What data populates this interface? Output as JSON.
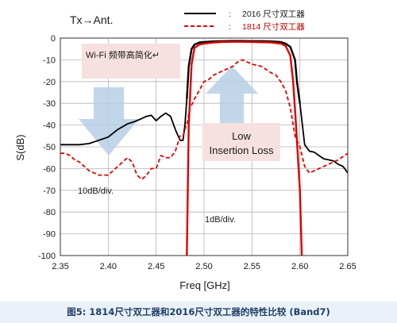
{
  "chart_data": {
    "type": "line",
    "corner_label": "Tx→Ant.",
    "xlabel": "Freq [GHz]",
    "ylabel": "S(dB)",
    "xlim": [
      2.35,
      2.65
    ],
    "ylim": [
      -100,
      0
    ],
    "x_ticks": [
      "2.35",
      "2.40",
      "2.45",
      "2.50",
      "2.55",
      "2.60",
      "2.65"
    ],
    "y_ticks": [
      "0",
      "-10",
      "-20",
      "-30",
      "-40",
      "-50",
      "-60",
      "-70",
      "-80",
      "-90",
      "-100"
    ],
    "grid": true,
    "legend_position": "top-right",
    "legend_colon": ":",
    "annotations": {
      "wifi_box": "Wi-Fi 频带高简化↵",
      "insertion_line1": "Low",
      "insertion_line2": "Insertion Loss",
      "scale_left": "10dB/div.",
      "scale_right": "1dB/div."
    },
    "series": [
      {
        "name": "2016 尺寸双工器",
        "color": "#000000",
        "style": "solid",
        "group": "attenuation",
        "x": [
          2.35,
          2.36,
          2.37,
          2.38,
          2.39,
          2.4,
          2.41,
          2.42,
          2.43,
          2.44,
          2.445,
          2.45,
          2.455,
          2.46,
          2.465,
          2.47,
          2.475,
          2.478,
          2.48,
          2.482
        ],
        "y": [
          -49,
          -49,
          -49,
          -48.5,
          -47,
          -45.5,
          -42,
          -39.5,
          -38,
          -36,
          -35.5,
          -38,
          -36,
          -34.5,
          -36,
          -42,
          -47,
          -47,
          -40,
          -28
        ]
      },
      {
        "name": "2016 尺寸双工器",
        "color": "#000000",
        "style": "solid",
        "group": "passband",
        "x": [
          2.482,
          2.484,
          2.487,
          2.49,
          2.495,
          2.5,
          2.51,
          2.52,
          2.53,
          2.54,
          2.55,
          2.56,
          2.57,
          2.58,
          2.585,
          2.59,
          2.595,
          2.597,
          2.6
        ],
        "y": [
          -28,
          -13,
          -5,
          -3,
          -2,
          -1.8,
          -1.5,
          -1.4,
          -1.3,
          -1.3,
          -1.4,
          -1.4,
          -1.5,
          -1.8,
          -2.5,
          -4,
          -10,
          -20,
          -30
        ]
      },
      {
        "name": "2016 尺寸双工器",
        "color": "#000000",
        "style": "solid",
        "group": "attenuation",
        "x": [
          2.6,
          2.605,
          2.61,
          2.615,
          2.62,
          2.625,
          2.63,
          2.635,
          2.64,
          2.645,
          2.65
        ],
        "y": [
          -30,
          -49,
          -52,
          -52.5,
          -54,
          -55.5,
          -56,
          -56.5,
          -58,
          -59,
          -62
        ]
      },
      {
        "name": "1814 尺寸双工器",
        "color": "#e00000",
        "style": "dashed",
        "group": "attenuation",
        "x": [
          2.35,
          2.355,
          2.36,
          2.365,
          2.37,
          2.375,
          2.38,
          2.39,
          2.4,
          2.405,
          2.41,
          2.415,
          2.42,
          2.425,
          2.43,
          2.435,
          2.44,
          2.445,
          2.45,
          2.455,
          2.46,
          2.465,
          2.47,
          2.475,
          2.478,
          2.48,
          2.483,
          2.485,
          2.488,
          2.49,
          2.495,
          2.5,
          2.505,
          2.51,
          2.52,
          2.53,
          2.535,
          2.54,
          2.55,
          2.56,
          2.57,
          2.575,
          2.58,
          2.585,
          2.59,
          2.595,
          2.6,
          2.605,
          2.61,
          2.615,
          2.62,
          2.63,
          2.64,
          2.65
        ],
        "y": [
          -53,
          -53,
          -54,
          -56,
          -57,
          -59,
          -61,
          -63,
          -63,
          -61,
          -59,
          -57,
          -55,
          -57,
          -63,
          -65,
          -63,
          -60,
          -60,
          -54,
          -55,
          -55,
          -52,
          -45,
          -45,
          -42,
          -38,
          -32,
          -30,
          -28,
          -24,
          -20,
          -19,
          -17,
          -15,
          -13,
          -11,
          -10,
          -12,
          -13,
          -16,
          -17,
          -20,
          -24,
          -32,
          -45,
          -50,
          -59,
          -62,
          -61,
          -60,
          -58,
          -56,
          -53
        ]
      },
      {
        "name": "1814 尺寸双工器",
        "color": "#e00000",
        "style": "solid",
        "group": "passband",
        "x": [
          2.482,
          2.484,
          2.487,
          2.49,
          2.495,
          2.5,
          2.51,
          2.52,
          2.53,
          2.54,
          2.55,
          2.56,
          2.57,
          2.58,
          2.585,
          2.59,
          2.593,
          2.596,
          2.6,
          2.602
        ],
        "y": [
          -100,
          -40,
          -12,
          -4.5,
          -3,
          -2.5,
          -2,
          -1.8,
          -1.7,
          -1.7,
          -1.8,
          -1.9,
          -2,
          -2.5,
          -3.5,
          -8,
          -20,
          -40,
          -70,
          -100
        ]
      }
    ]
  },
  "caption": "图5: 1814尺寸双工器和2016尺寸双工器的特性比较 (Band7)"
}
